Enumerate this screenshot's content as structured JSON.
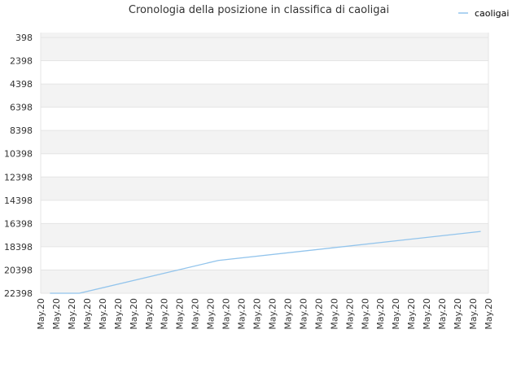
{
  "chart_data": {
    "type": "line",
    "title": "Cronologia della posizione in classifica di caoligai",
    "xlabel": "",
    "ylabel": "",
    "y_inverted": true,
    "ylim": [
      22398,
      398
    ],
    "yticks": [
      "398",
      "2398",
      "4398",
      "6398",
      "8398",
      "10398",
      "12398",
      "14398",
      "16398",
      "18398",
      "20398",
      "22398"
    ],
    "yticks_values": [
      398,
      2398,
      4398,
      6398,
      8398,
      10398,
      12398,
      14398,
      16398,
      18398,
      20398,
      22398
    ],
    "x_categories": [
      "May.20",
      "May.20",
      "May.20",
      "May.20",
      "May.20",
      "May.20",
      "May.20",
      "May.20",
      "May.20",
      "May.20",
      "May.20",
      "May.20",
      "May.20",
      "May.20",
      "May.20",
      "May.20",
      "May.20",
      "May.20",
      "May.20",
      "May.20",
      "May.20",
      "May.20",
      "May.20",
      "May.20",
      "May.20",
      "May.20",
      "May.20",
      "May.20",
      "May.20",
      "May.20"
    ],
    "legend_position": "top-right",
    "grid": true,
    "background_bands": [
      "#f3f3f3",
      "#ffffff"
    ],
    "line_color": "#92c4ec",
    "series": [
      {
        "name": "caoligai",
        "x_index": [
          0.6,
          2.5,
          11.5,
          28.5
        ],
        "values": [
          22398,
          22398,
          19580,
          17080
        ]
      }
    ]
  }
}
